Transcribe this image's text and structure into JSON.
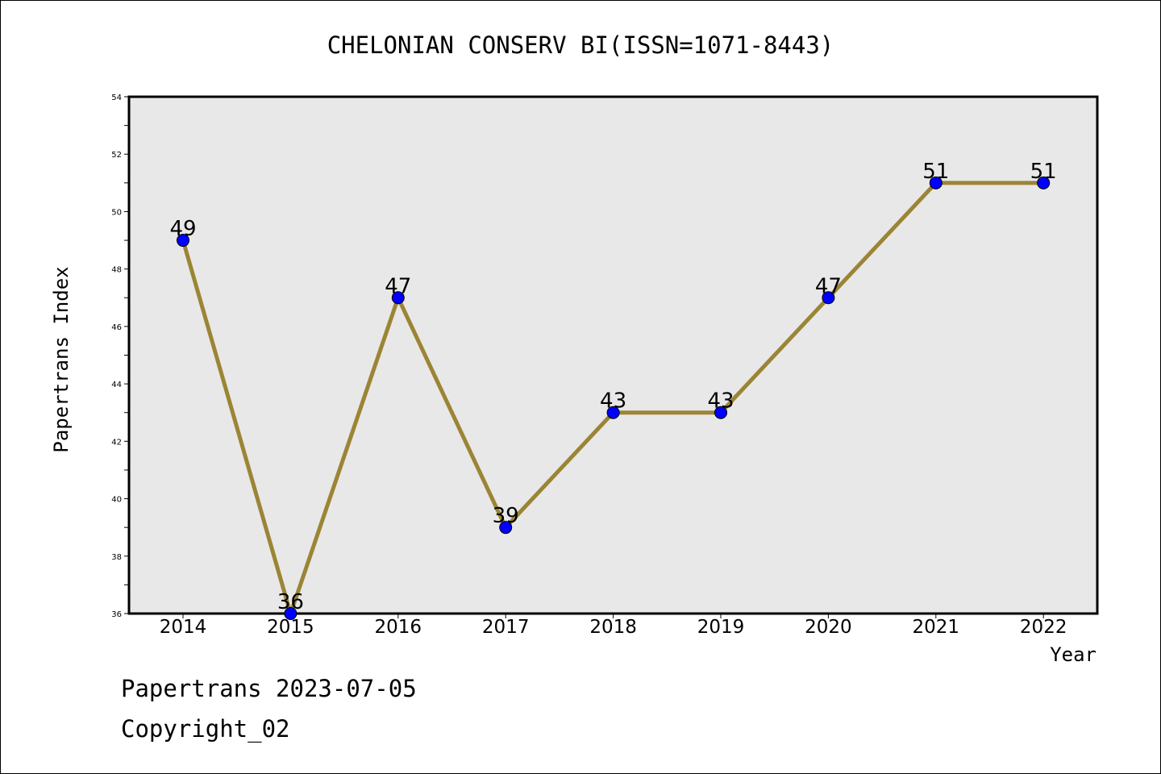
{
  "chart_data": {
    "type": "line",
    "title": "CHELONIAN CONSERV BI(ISSN=1071-8443)",
    "xlabel": "Year",
    "ylabel": "Papertrans Index",
    "categories": [
      "2014",
      "2015",
      "2016",
      "2017",
      "2018",
      "2019",
      "2020",
      "2021",
      "2022"
    ],
    "values": [
      49,
      36,
      47,
      39,
      43,
      43,
      47,
      51,
      51
    ],
    "data_labels": [
      "49",
      "36",
      "47",
      "39",
      "43",
      "43",
      "47",
      "51",
      "51"
    ],
    "ylim": [
      36,
      54
    ],
    "yticks": [
      "36",
      "38",
      "40",
      "42",
      "44",
      "46",
      "48",
      "50",
      "52",
      "54"
    ],
    "grid": false,
    "line_color": "#9b8535",
    "marker_color": "#0000ff",
    "plot_background": "#e8e8e8"
  },
  "footer": {
    "line1": "Papertrans 2023-07-05",
    "line2": "Copyright_02"
  }
}
